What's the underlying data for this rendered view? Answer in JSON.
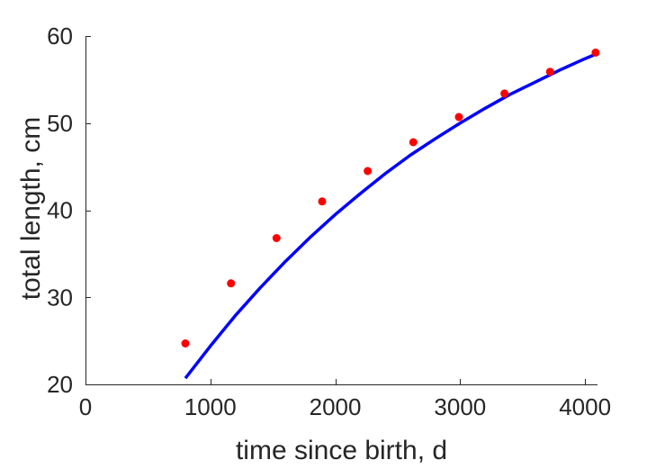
{
  "chart_data": {
    "type": "scatter",
    "xlabel": "time since birth, d",
    "ylabel": "total length, cm",
    "xlim": [
      0,
      4100
    ],
    "ylim": [
      20,
      60
    ],
    "xticks": [
      0,
      1000,
      2000,
      3000,
      4000
    ],
    "yticks": [
      20,
      30,
      40,
      50,
      60
    ],
    "grid": false,
    "series": [
      {
        "type": "scatter",
        "color": "#ff0000",
        "x": [
          800,
          1165,
          1530,
          1895,
          2260,
          2625,
          2990,
          3355,
          3720,
          4085
        ],
        "y": [
          24.7,
          31.6,
          36.8,
          41.0,
          44.5,
          47.8,
          50.7,
          53.4,
          55.9,
          58.1
        ]
      },
      {
        "type": "line",
        "color": "#0000ff",
        "x": [
          800,
          1000,
          1200,
          1400,
          1600,
          1800,
          2000,
          2200,
          2400,
          2600,
          2800,
          3000,
          3200,
          3400,
          3600,
          3800,
          4000,
          4085
        ],
        "y": [
          20.7,
          24.4,
          27.9,
          31.1,
          34.1,
          36.9,
          39.5,
          41.9,
          44.2,
          46.3,
          48.2,
          50.0,
          51.7,
          53.3,
          54.7,
          56.1,
          57.4,
          57.9
        ]
      }
    ]
  }
}
